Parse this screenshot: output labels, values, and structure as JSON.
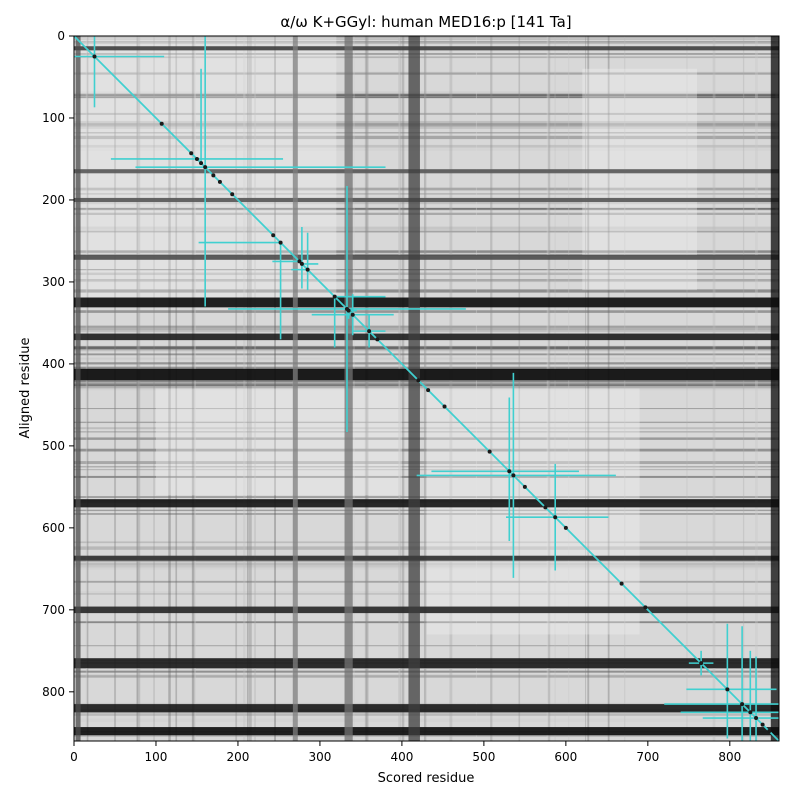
{
  "chart_data": {
    "type": "scatter",
    "title": "α/ω K+GGyl: human MED16:p [141 Ta]",
    "xlabel": "Scored residue",
    "ylabel": "Aligned residue",
    "xlim": [
      0,
      860
    ],
    "ylim": [
      860,
      0
    ],
    "x_ticks": [
      0,
      100,
      200,
      300,
      400,
      500,
      600,
      700,
      800
    ],
    "y_ticks": [
      0,
      100,
      200,
      300,
      400,
      500,
      600,
      700,
      800
    ],
    "background": "grayscale distance heatmap",
    "diagonal_line": {
      "from": [
        0,
        0
      ],
      "to": [
        860,
        860
      ],
      "color": "#40d0d0"
    },
    "points_color": "#1a1a1a",
    "errorbar_color": "#40d0d0",
    "heatmap": {
      "base_gray": "#d8d8d8",
      "dark_rows": [
        {
          "pos": 325,
          "width": 12,
          "shade": 0.05
        },
        {
          "pos": 367,
          "width": 8,
          "shade": 0.12
        },
        {
          "pos": 413,
          "width": 14,
          "shade": 0.03
        },
        {
          "pos": 570,
          "width": 10,
          "shade": 0.08
        },
        {
          "pos": 637,
          "width": 6,
          "shade": 0.2
        },
        {
          "pos": 700,
          "width": 8,
          "shade": 0.15
        },
        {
          "pos": 765,
          "width": 12,
          "shade": 0.1
        },
        {
          "pos": 820,
          "width": 10,
          "shade": 0.1
        },
        {
          "pos": 848,
          "width": 10,
          "shade": 0.05
        },
        {
          "pos": 15,
          "width": 5,
          "shade": 0.25
        },
        {
          "pos": 165,
          "width": 5,
          "shade": 0.35
        },
        {
          "pos": 200,
          "width": 5,
          "shade": 0.35
        },
        {
          "pos": 270,
          "width": 6,
          "shade": 0.3
        }
      ],
      "dark_cols": [
        {
          "pos": 415,
          "width": 14,
          "shade": 0.25
        },
        {
          "pos": 335,
          "width": 10,
          "shade": 0.45
        },
        {
          "pos": 855,
          "width": 10,
          "shade": 0.05
        },
        {
          "pos": 5,
          "width": 6,
          "shade": 0.3
        },
        {
          "pos": 270,
          "width": 6,
          "shade": 0.5
        }
      ]
    },
    "points": [
      {
        "x": 25,
        "y": 25,
        "xerr": [
          25,
          85
        ],
        "yerr": [
          25,
          62
        ]
      },
      {
        "x": 107,
        "y": 107
      },
      {
        "x": 143,
        "y": 143
      },
      {
        "x": 150,
        "y": 150,
        "xerr": [
          105,
          105
        ],
        "yerr": [
          0,
          0
        ]
      },
      {
        "x": 155,
        "y": 155,
        "xerr": [
          0,
          0
        ],
        "yerr": [
          115,
          0
        ]
      },
      {
        "x": 160,
        "y": 160,
        "xerr": [
          85,
          220
        ],
        "yerr": [
          160,
          170
        ]
      },
      {
        "x": 170,
        "y": 170
      },
      {
        "x": 178,
        "y": 178
      },
      {
        "x": 193,
        "y": 193
      },
      {
        "x": 243,
        "y": 243
      },
      {
        "x": 252,
        "y": 252,
        "xerr": [
          100,
          0
        ],
        "yerr": [
          0,
          118
        ]
      },
      {
        "x": 275,
        "y": 275,
        "xerr": [
          33,
          0
        ],
        "yerr": [
          0,
          0
        ]
      },
      {
        "x": 278,
        "y": 278,
        "xerr": [
          0,
          20
        ],
        "yerr": [
          45,
          30
        ]
      },
      {
        "x": 285,
        "y": 285,
        "xerr": [
          20,
          0
        ],
        "yerr": [
          45,
          25
        ]
      },
      {
        "x": 318,
        "y": 318,
        "xerr": [
          0,
          62
        ],
        "yerr": [
          0,
          62
        ]
      },
      {
        "x": 335,
        "y": 335,
        "xerr": [
          0,
          10
        ],
        "yerr": [
          0,
          10
        ]
      },
      {
        "x": 333,
        "y": 333,
        "xerr": [
          145,
          145
        ],
        "yerr": [
          150,
          150
        ]
      },
      {
        "x": 340,
        "y": 340,
        "xerr": [
          50,
          50
        ],
        "yerr": [
          25,
          25
        ]
      },
      {
        "x": 360,
        "y": 360,
        "xerr": [
          20,
          20
        ],
        "yerr": [
          20,
          20
        ]
      },
      {
        "x": 370,
        "y": 370
      },
      {
        "x": 420,
        "y": 420
      },
      {
        "x": 432,
        "y": 432
      },
      {
        "x": 452,
        "y": 452
      },
      {
        "x": 507,
        "y": 507
      },
      {
        "x": 531,
        "y": 531,
        "xerr": [
          95,
          85
        ],
        "yerr": [
          90,
          85
        ]
      },
      {
        "x": 536,
        "y": 536,
        "xerr": [
          118,
          125
        ],
        "yerr": [
          125,
          125
        ]
      },
      {
        "x": 550,
        "y": 550
      },
      {
        "x": 575,
        "y": 575,
        "xerr": [
          0,
          0
        ],
        "yerr": [
          0,
          0
        ]
      },
      {
        "x": 587,
        "y": 587,
        "xerr": [
          60,
          65
        ],
        "yerr": [
          65,
          65
        ]
      },
      {
        "x": 600,
        "y": 600
      },
      {
        "x": 668,
        "y": 668
      },
      {
        "x": 697,
        "y": 697
      },
      {
        "x": 765,
        "y": 765,
        "xerr": [
          15,
          15
        ],
        "yerr": [
          15,
          15
        ]
      },
      {
        "x": 797,
        "y": 797,
        "xerr": [
          50,
          60
        ],
        "yerr": [
          80,
          60
        ]
      },
      {
        "x": 815,
        "y": 815,
        "xerr": [
          95,
          45
        ],
        "yerr": [
          95,
          45
        ]
      },
      {
        "x": 825,
        "y": 825,
        "xerr": [
          85,
          35
        ],
        "yerr": [
          75,
          35
        ]
      },
      {
        "x": 832,
        "y": 832,
        "xerr": [
          65,
          28
        ],
        "yerr": [
          75,
          28
        ]
      },
      {
        "x": 840,
        "y": 840
      },
      {
        "x": 848,
        "y": 848
      }
    ]
  }
}
